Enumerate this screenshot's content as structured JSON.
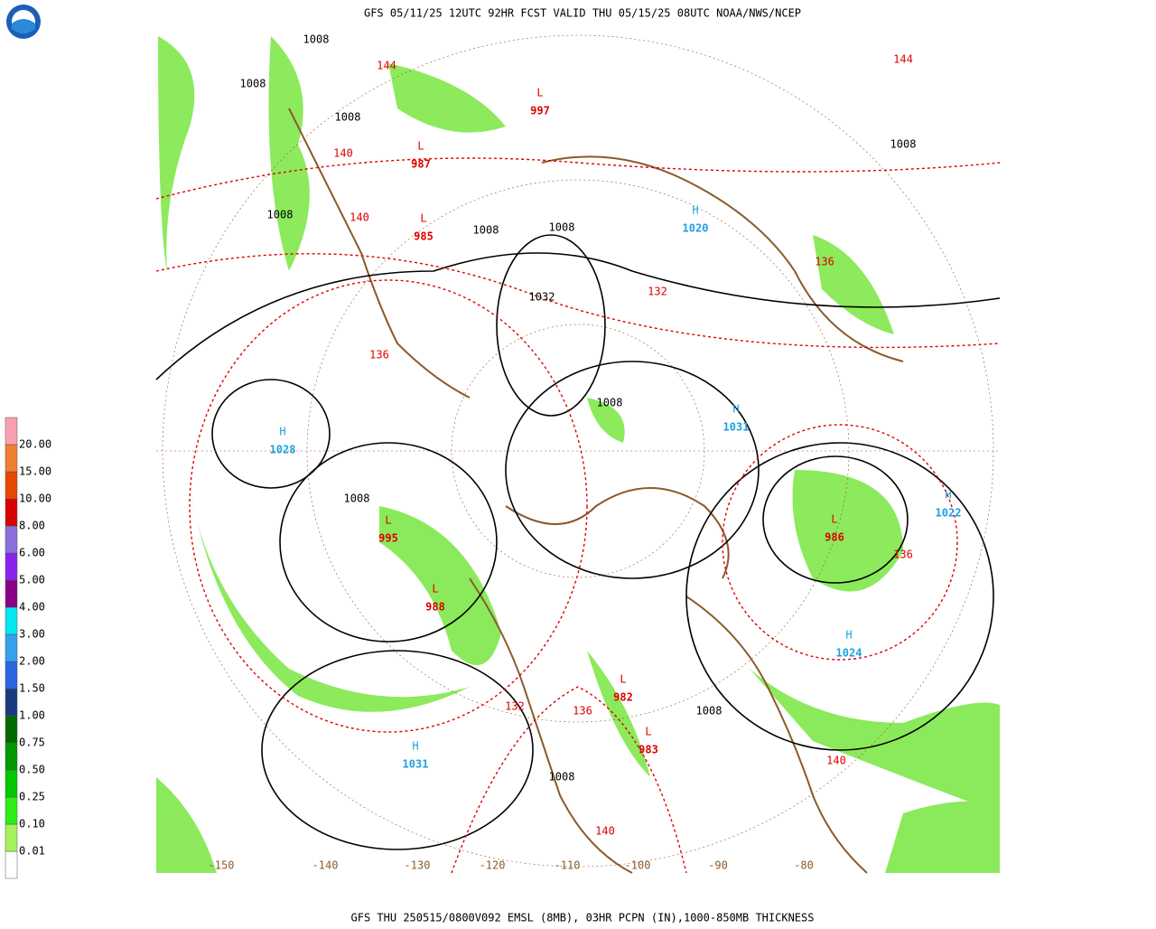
{
  "header": {
    "title": "GFS 05/11/25 12UTC 92HR FCST VALID THU 05/15/25 08UTC NOAA/NWS/NCEP"
  },
  "footer": {
    "caption": "GFS THU 250515/0800V092 EMSL (8MB), 03HR PCPN (IN),1000-850MB THICKNESS"
  },
  "legend": {
    "boxes": [
      "#ffffff",
      "#a6f25a",
      "#2eee16",
      "#00c800",
      "#009a00",
      "#006a00",
      "#1a3a80",
      "#2a66e0",
      "#34a0ee",
      "#00e8f0",
      "#8a0088",
      "#8a22ee",
      "#8a70d8",
      "#d80000",
      "#e84800",
      "#f08030",
      "#f8a0b0"
    ],
    "labels": [
      "0.01",
      "0.10",
      "0.25",
      "0.50",
      "0.75",
      "1.00",
      "1.50",
      "2.00",
      "3.00",
      "4.00",
      "5.00",
      "6.00",
      "8.00",
      "10.00",
      "15.00",
      "20.00"
    ]
  },
  "map": {
    "longitudes": [
      -150,
      -140,
      -130,
      -120,
      -110,
      -100,
      -90,
      -80
    ],
    "centers": [
      {
        "letter": "H",
        "value": "1028"
      },
      {
        "letter": "L",
        "value": "995"
      },
      {
        "letter": "L",
        "value": "988"
      },
      {
        "letter": "H",
        "value": "1031"
      },
      {
        "letter": "H",
        "value": "1024"
      },
      {
        "letter": "L",
        "value": "986"
      },
      {
        "letter": "H",
        "value": "1022"
      },
      {
        "letter": "H",
        "value": "1020"
      },
      {
        "letter": "H",
        "value": "1031"
      },
      {
        "letter": "L",
        "value": "987"
      },
      {
        "letter": "L",
        "value": "985"
      },
      {
        "letter": "L",
        "value": "997"
      },
      {
        "letter": "L",
        "value": "982"
      },
      {
        "letter": "L",
        "value": "983"
      }
    ],
    "isobar_labels": [
      "1008",
      "1008",
      "1008",
      "1008",
      "1008",
      "1008",
      "1008",
      "1008",
      "1032",
      "1008",
      "1008",
      "1008"
    ],
    "thickness_labels": [
      "144",
      "140",
      "140",
      "136",
      "132",
      "136",
      "132",
      "140",
      "144",
      "140",
      "136",
      "136"
    ]
  }
}
